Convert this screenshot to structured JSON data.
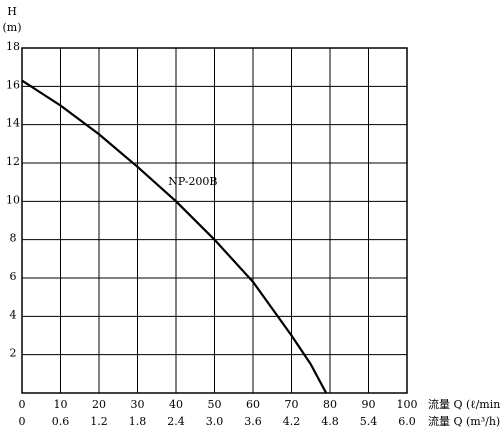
{
  "chart_data": {
    "type": "line",
    "y_label": "H",
    "y_unit": "(m)",
    "x_label": "流量 Q (ℓ/min)",
    "x2_label": "流量 Q (m³/h)",
    "annotation": {
      "text": "NP-200B",
      "x": 38,
      "y": 11
    },
    "x": [
      0,
      10,
      20,
      30,
      40,
      50,
      60,
      70,
      75,
      79
    ],
    "series": [
      {
        "name": "NP-200B",
        "color": "#000000",
        "values": [
          16.3,
          15.0,
          13.5,
          11.8,
          10.0,
          8.0,
          5.8,
          3.0,
          1.5,
          0
        ]
      }
    ],
    "xlim": [
      0,
      100
    ],
    "xticks": [
      0,
      10,
      20,
      30,
      40,
      50,
      60,
      70,
      80,
      90,
      100
    ],
    "x2lim": [
      0,
      6
    ],
    "x2ticks": [
      0,
      0.6,
      1.2,
      1.8,
      2.4,
      {
        "value": 3,
        "label": "3.0"
      },
      3.6,
      4.2,
      4.8,
      5.4,
      {
        "value": 6,
        "label": "6.0"
      }
    ],
    "ylim": [
      0,
      18
    ],
    "yticks": [
      2,
      4,
      6,
      8,
      10,
      12,
      14,
      16,
      18
    ],
    "grid": true
  }
}
